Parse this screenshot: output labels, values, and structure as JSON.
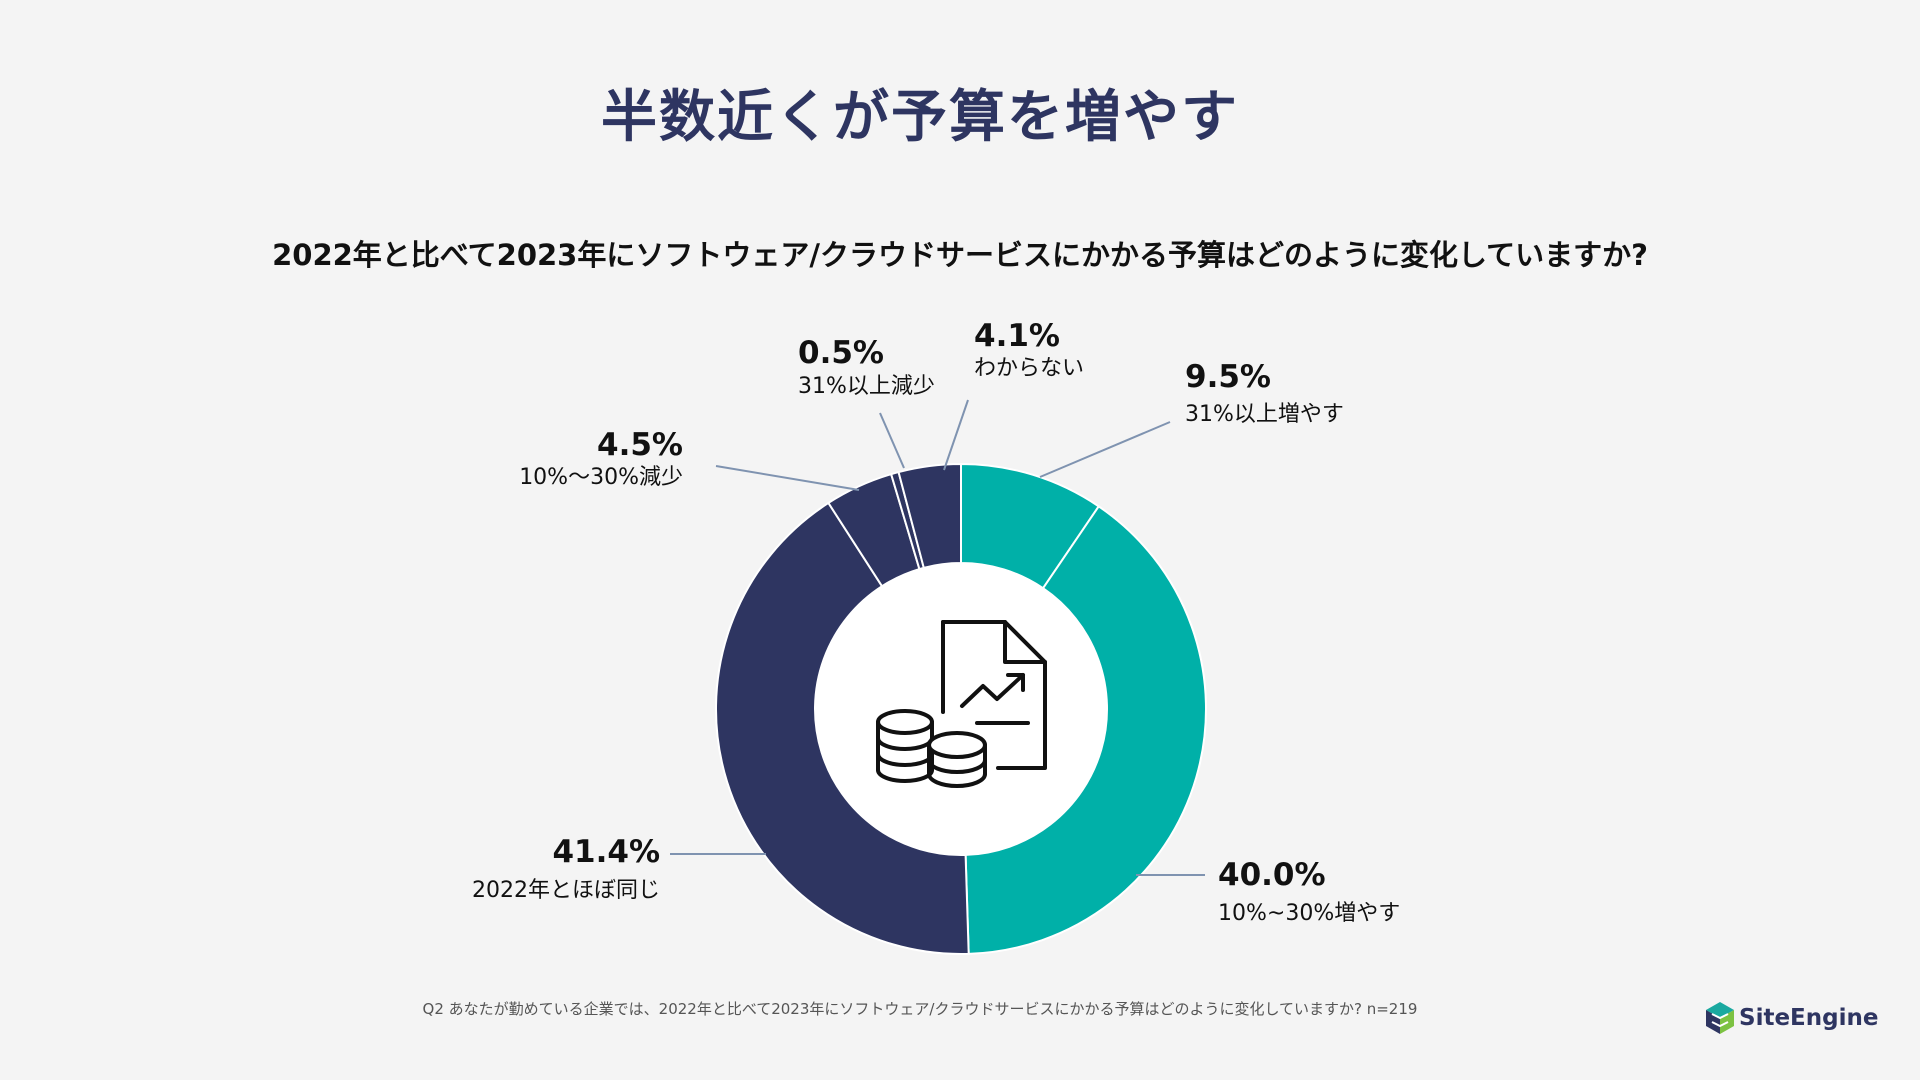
{
  "title": "半数近くが予算を増やす",
  "question": "2022年と比べて2023年にソフトウェア/クラウドサービスにかかる予算はどのように変化していますか?",
  "footnote": "Q2 あなたが勤めている企業では、2022年と比べて2023年にソフトウェア/クラウドサービスにかかる予算はどのように変化していますか? n=219",
  "logo": {
    "text": "SiteEngine",
    "colors": [
      "#1aa9a0",
      "#2e3561",
      "#7cc242"
    ]
  },
  "center_icon": "document-chart-coins-icon",
  "colors": {
    "increase": "#00b0a8",
    "other": "#2e3561",
    "divider": "#ffffff",
    "leader": "#7f93b0"
  },
  "chart_data": {
    "type": "pie",
    "style": "donut",
    "unit": "%",
    "slices": [
      {
        "label": "31%以上増やす",
        "value": 9.5,
        "display": "9.5%",
        "color": "#00b0a8"
      },
      {
        "label": "10%~30%増やす",
        "value": 40.0,
        "display": "40.0%",
        "color": "#00b0a8"
      },
      {
        "label": "2022年とほぼ同じ",
        "value": 41.4,
        "display": "41.4%",
        "color": "#2e3561"
      },
      {
        "label": "10%〜30%減少",
        "value": 4.5,
        "display": "4.5%",
        "color": "#2e3561"
      },
      {
        "label": "31%以上減少",
        "value": 0.5,
        "display": "0.5%",
        "color": "#2e3561"
      },
      {
        "label": "わからない",
        "value": 4.1,
        "display": "4.1%",
        "color": "#2e3561"
      }
    ]
  }
}
